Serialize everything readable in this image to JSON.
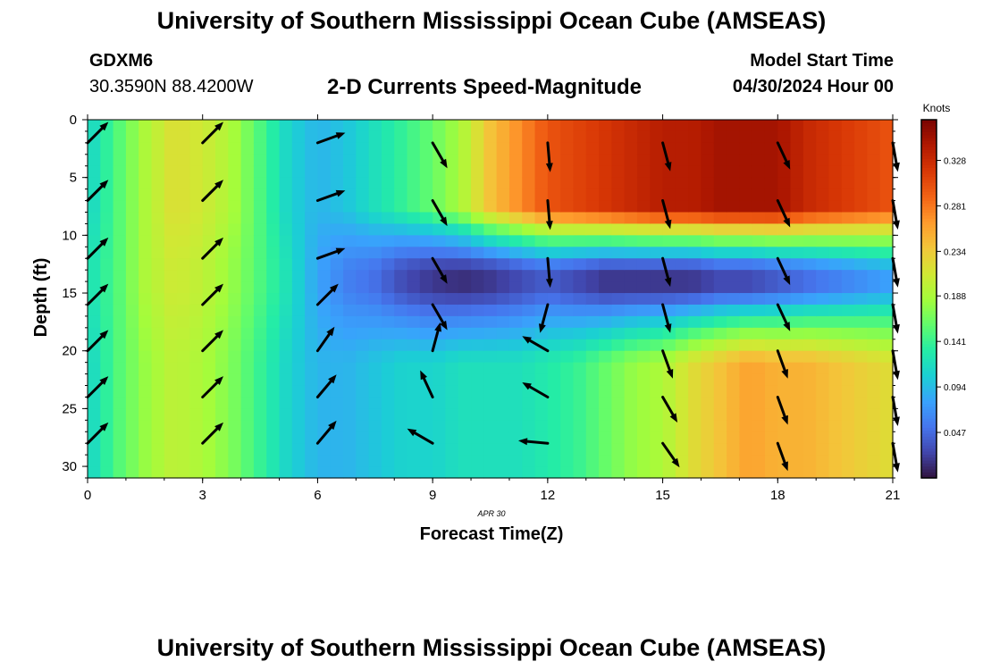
{
  "header": {
    "title": "University of Southern Mississippi Ocean Cube (AMSEAS)",
    "station": "GDXM6",
    "coords": "30.3590N  88.4200W",
    "subtitle": "2-D Currents Speed-Magnitude",
    "model_start_label": "Model Start Time",
    "model_start_value": "04/30/2024 Hour 00"
  },
  "footer": {
    "title": "University of Southern Mississippi Ocean Cube (AMSEAS)"
  },
  "chart_data": {
    "type": "heatmap",
    "xlabel": "Forecast Time(Z)",
    "ylabel": "Depth (ft)",
    "date_label": "APR  30",
    "xlim": [
      0,
      21
    ],
    "ylim": [
      0,
      31
    ],
    "xticks": [
      0,
      3,
      6,
      9,
      12,
      15,
      18,
      21
    ],
    "yticks": [
      0,
      5,
      10,
      15,
      20,
      25,
      30
    ],
    "colorbar": {
      "label": "Knots",
      "ticks": [
        0.047,
        0.094,
        0.141,
        0.188,
        0.234,
        0.281,
        0.328
      ],
      "range": [
        0.0,
        0.37
      ]
    },
    "colormap": [
      "#30123b",
      "#4145ab",
      "#4675ed",
      "#39a2fc",
      "#1bcfd4",
      "#24eca6",
      "#61fc6c",
      "#a4fc3b",
      "#d1e834",
      "#f3c63a",
      "#fe9b2d",
      "#f36315",
      "#d93806",
      "#b11901",
      "#7a0402"
    ],
    "speed_columns": {
      "times": [
        0,
        0.75,
        1.5,
        2.25,
        3,
        3.75,
        4.5,
        5.25,
        6,
        6.75,
        7.5,
        8.25,
        9,
        9.75,
        10.5,
        11.25,
        12,
        12.75,
        13.5,
        14.25,
        15,
        15.75,
        16.5,
        17.25,
        18,
        18.75,
        19.5,
        20.25,
        21
      ],
      "surface": [
        0.11,
        0.15,
        0.19,
        0.22,
        0.21,
        0.19,
        0.15,
        0.11,
        0.09,
        0.1,
        0.12,
        0.14,
        0.16,
        0.19,
        0.24,
        0.27,
        0.3,
        0.31,
        0.32,
        0.33,
        0.34,
        0.34,
        0.35,
        0.35,
        0.35,
        0.33,
        0.32,
        0.31,
        0.3
      ],
      "core": [
        0.12,
        0.15,
        0.19,
        0.21,
        0.2,
        0.18,
        0.15,
        0.12,
        0.08,
        0.06,
        0.05,
        0.03,
        0.02,
        0.015,
        0.02,
        0.03,
        0.04,
        0.03,
        0.02,
        0.02,
        0.02,
        0.02,
        0.03,
        0.03,
        0.04,
        0.05,
        0.06,
        0.07,
        0.08
      ],
      "bottom": [
        0.11,
        0.15,
        0.18,
        0.2,
        0.19,
        0.17,
        0.14,
        0.11,
        0.09,
        0.09,
        0.1,
        0.11,
        0.11,
        0.12,
        0.12,
        0.12,
        0.13,
        0.14,
        0.16,
        0.18,
        0.19,
        0.22,
        0.24,
        0.26,
        0.25,
        0.25,
        0.24,
        0.23,
        0.22
      ]
    },
    "vector_times": [
      0,
      3,
      6,
      9,
      12,
      15,
      18,
      21
    ],
    "vector_depths": [
      2,
      7,
      12,
      16,
      20,
      24,
      28
    ],
    "vector_directions_deg": [
      [
        45,
        45,
        45,
        45,
        45,
        45,
        45
      ],
      [
        45,
        45,
        45,
        45,
        45,
        45,
        45
      ],
      [
        70,
        70,
        70,
        45,
        35,
        40,
        40
      ],
      [
        150,
        150,
        150,
        150,
        15,
        335,
        300
      ],
      [
        175,
        175,
        175,
        195,
        300,
        300,
        275
      ],
      [
        165,
        165,
        165,
        165,
        160,
        150,
        145
      ],
      [
        155,
        155,
        155,
        155,
        160,
        160,
        160
      ],
      [
        170,
        170,
        170,
        170,
        170,
        170,
        170
      ]
    ]
  }
}
